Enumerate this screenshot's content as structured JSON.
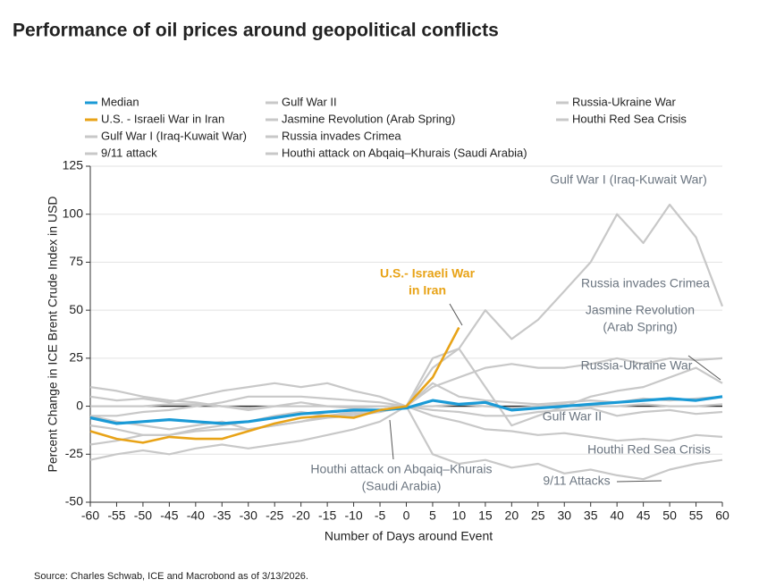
{
  "chart_data": {
    "type": "line",
    "title": "Performance of oil prices around geopolitical conflicts",
    "x_label": "Number of Days around Event",
    "y_label": "Percent Change in ICE Brent Crude Index in USD",
    "source": "Source: Charles Schwab, ICE and Macrobond as of 3/13/2026.",
    "x": [
      -60,
      -55,
      -50,
      -45,
      -40,
      -35,
      -30,
      -25,
      -20,
      -15,
      -10,
      -5,
      0,
      5,
      10,
      15,
      20,
      25,
      30,
      35,
      40,
      45,
      50,
      55,
      60
    ],
    "xlim": [
      -60,
      60
    ],
    "xticks": [
      -60,
      -55,
      -50,
      -45,
      -40,
      -35,
      -30,
      -25,
      -20,
      -15,
      -10,
      -5,
      0,
      5,
      10,
      15,
      20,
      25,
      30,
      35,
      40,
      45,
      50,
      55,
      60
    ],
    "ylim": [
      -50,
      125
    ],
    "yticks": [
      -50,
      -25,
      0,
      25,
      50,
      75,
      100,
      125
    ],
    "grid": true,
    "series": [
      {
        "name": "Median",
        "color": "#1a9ad6",
        "values": [
          -6,
          -9,
          -8,
          -7,
          -8,
          -9,
          -8,
          -6,
          -4,
          -3,
          -2,
          -2,
          -1,
          3,
          1,
          2,
          -2,
          -1,
          0,
          1,
          2,
          3,
          4,
          3,
          5
        ]
      },
      {
        "name": "U.S. - Israeli War in Iran",
        "color": "#e8a317",
        "values": [
          -13,
          -17,
          -19,
          -16,
          -17,
          -17,
          -13,
          -9,
          -6,
          -5,
          -6,
          -2,
          0,
          15,
          41,
          null,
          null,
          null,
          null,
          null,
          null,
          null,
          null,
          null,
          null
        ]
      },
      {
        "name": "Gulf War I (Iraq-Kuwait War)",
        "color": "#c8c8c8",
        "values": [
          10,
          8,
          5,
          3,
          2,
          0,
          -2,
          0,
          2,
          0,
          -1,
          0,
          0,
          25,
          30,
          50,
          35,
          45,
          60,
          75,
          100,
          85,
          105,
          88,
          52
        ]
      },
      {
        "name": "9/11 attack",
        "color": "#c8c8c8",
        "values": [
          -28,
          -25,
          -23,
          -25,
          -22,
          -20,
          -22,
          -20,
          -18,
          -15,
          -12,
          -8,
          0,
          -25,
          -30,
          -28,
          -32,
          -30,
          -35,
          -33,
          -36,
          -38,
          -33,
          -30,
          -28
        ]
      },
      {
        "name": "Gulf War II",
        "color": "#c8c8c8",
        "values": [
          -5,
          -8,
          -10,
          -12,
          -10,
          -8,
          -12,
          -10,
          -8,
          -5,
          -3,
          -2,
          0,
          -2,
          -3,
          -5,
          -5,
          -3,
          -2,
          -1,
          -5,
          -3,
          -2,
          -4,
          -3
        ]
      },
      {
        "name": "Jasmine Revolution (Arab Spring)",
        "color": "#c8c8c8",
        "values": [
          -5,
          -5,
          -3,
          -2,
          0,
          2,
          5,
          5,
          5,
          4,
          3,
          2,
          0,
          10,
          15,
          20,
          22,
          20,
          20,
          22,
          25,
          22,
          25,
          24,
          25
        ]
      },
      {
        "name": "Russia invades Crimea",
        "color": "#c8c8c8",
        "values": [
          0,
          0,
          0,
          1,
          1,
          0,
          -1,
          0,
          0,
          0,
          0,
          0,
          0,
          0,
          1,
          0,
          -1,
          0,
          1,
          0,
          0,
          1,
          0,
          0,
          1
        ]
      },
      {
        "name": "Houthi attack on Abqaiq–Khurais (Saudi Arabia)",
        "color": "#c8c8c8",
        "values": [
          -20,
          -18,
          -15,
          -15,
          -12,
          -10,
          -8,
          -5,
          -3,
          -5,
          -4,
          -3,
          0,
          12,
          5,
          3,
          2,
          1,
          2,
          3,
          2,
          4,
          3,
          4,
          5
        ]
      },
      {
        "name": "Russia-Ukraine War",
        "color": "#c8c8c8",
        "values": [
          5,
          3,
          4,
          2,
          5,
          8,
          10,
          12,
          10,
          12,
          8,
          5,
          0,
          20,
          30,
          10,
          -10,
          -5,
          0,
          5,
          8,
          10,
          15,
          20,
          12
        ]
      },
      {
        "name": "Houthi Red Sea Crisis",
        "color": "#c8c8c8",
        "values": [
          -10,
          -12,
          -15,
          -15,
          -13,
          -12,
          -12,
          -10,
          -8,
          -6,
          -5,
          -3,
          0,
          -5,
          -8,
          -12,
          -13,
          -15,
          -14,
          -16,
          -18,
          -17,
          -18,
          -15,
          -16
        ]
      }
    ],
    "annotations": [
      {
        "lines": [
          "Gulf War I (Iraq-Kuwait War)"
        ]
      },
      {
        "lines": [
          "U.S.- Israeli War",
          "in Iran"
        ],
        "color": "#e8a317"
      },
      {
        "lines": [
          "Russia invades Crimea"
        ]
      },
      {
        "lines": [
          "Jasmine Revolution",
          "(Arab Spring)"
        ]
      },
      {
        "lines": [
          "Russia-Ukraine War"
        ]
      },
      {
        "lines": [
          "Gulf War II"
        ]
      },
      {
        "lines": [
          "Houthi Red Sea Crisis"
        ]
      },
      {
        "lines": [
          "Houthi attack on Abqaiq–Khurais",
          "(Saudi Arabia)"
        ]
      },
      {
        "lines": [
          "9/11 Attacks"
        ]
      }
    ]
  }
}
